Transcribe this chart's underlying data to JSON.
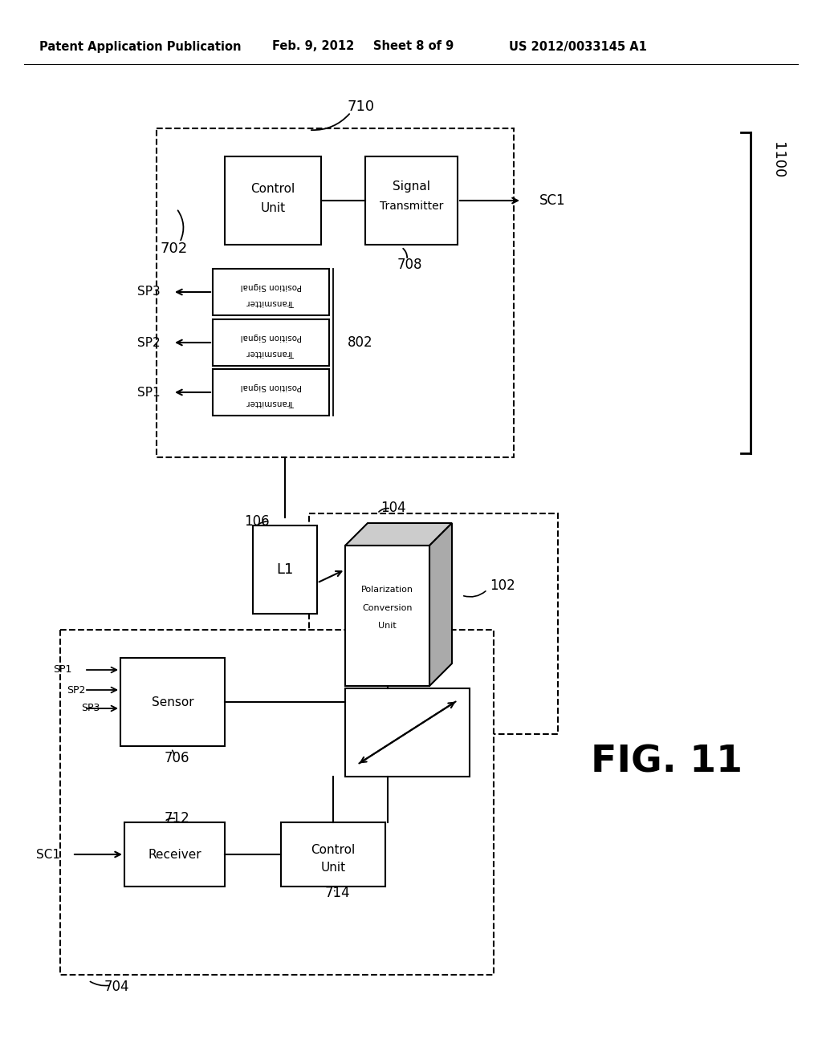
{
  "bg_color": "#ffffff",
  "header_text": "Patent Application Publication",
  "header_date": "Feb. 9, 2012",
  "header_sheet": "Sheet 8 of 9",
  "header_patent": "US 2012/0033145 A1",
  "fig_label": "FIG. 11"
}
